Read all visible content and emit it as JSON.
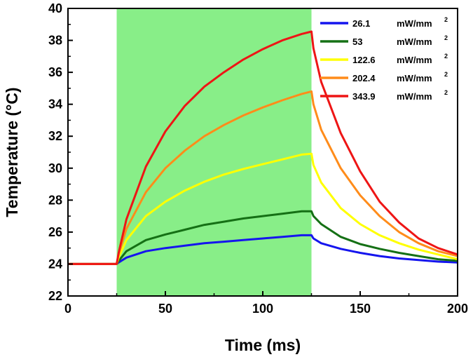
{
  "chart_data": {
    "type": "line",
    "title": "",
    "xlabel": "Time (ms)",
    "ylabel": "Temperature (°C)",
    "xlim": [
      0,
      200
    ],
    "ylim": [
      22,
      40
    ],
    "x_ticks": [
      "0",
      "50",
      "100",
      "150",
      "200"
    ],
    "y_ticks": [
      "22",
      "24",
      "26",
      "28",
      "30",
      "32",
      "34",
      "36",
      "38",
      "40"
    ],
    "grid": false,
    "legend_position": "top-right",
    "shaded_region": {
      "x_start": 25,
      "x_end": 125,
      "color": "#88ee88"
    },
    "legend_unit": "mW/mm",
    "legend_unit_sup": "2",
    "series": [
      {
        "name": "26.1",
        "color": "#1515ee",
        "x": [
          0,
          25,
          26,
          30,
          40,
          50,
          60,
          70,
          80,
          90,
          100,
          110,
          120,
          125,
          126,
          130,
          140,
          150,
          160,
          170,
          180,
          190,
          200
        ],
        "y": [
          24.0,
          24.0,
          24.1,
          24.4,
          24.8,
          25.0,
          25.15,
          25.3,
          25.4,
          25.5,
          25.6,
          25.7,
          25.8,
          25.8,
          25.6,
          25.3,
          24.95,
          24.7,
          24.5,
          24.35,
          24.25,
          24.15,
          24.1
        ]
      },
      {
        "name": "53",
        "color": "#157015",
        "x": [
          0,
          25,
          26,
          30,
          40,
          50,
          60,
          70,
          80,
          90,
          100,
          110,
          120,
          125,
          126,
          130,
          140,
          150,
          160,
          170,
          180,
          190,
          200
        ],
        "y": [
          24.0,
          24.0,
          24.2,
          24.8,
          25.5,
          25.85,
          26.15,
          26.45,
          26.65,
          26.85,
          27.0,
          27.15,
          27.3,
          27.3,
          27.0,
          26.5,
          25.7,
          25.25,
          24.95,
          24.7,
          24.5,
          24.3,
          24.2
        ]
      },
      {
        "name": "122.6",
        "color": "#ffff00",
        "x": [
          0,
          25,
          26,
          30,
          40,
          50,
          60,
          70,
          80,
          90,
          100,
          110,
          120,
          125,
          126,
          130,
          140,
          150,
          160,
          170,
          180,
          190,
          200
        ],
        "y": [
          24.0,
          24.0,
          24.4,
          25.5,
          27.0,
          27.9,
          28.6,
          29.15,
          29.6,
          29.95,
          30.25,
          30.55,
          30.85,
          30.9,
          30.2,
          29.1,
          27.5,
          26.5,
          25.8,
          25.3,
          24.9,
          24.6,
          24.3
        ]
      },
      {
        "name": "202.4",
        "color": "#ff8c1a",
        "x": [
          0,
          25,
          26,
          30,
          40,
          50,
          60,
          70,
          80,
          90,
          100,
          110,
          120,
          125,
          126,
          130,
          140,
          150,
          160,
          170,
          180,
          190,
          200
        ],
        "y": [
          24.0,
          24.0,
          24.6,
          26.2,
          28.5,
          30.0,
          31.1,
          32.0,
          32.7,
          33.3,
          33.8,
          34.25,
          34.65,
          34.8,
          34.0,
          32.4,
          30.0,
          28.3,
          27.0,
          26.0,
          25.3,
          24.8,
          24.5
        ]
      },
      {
        "name": "343.9",
        "color": "#ee1515",
        "x": [
          0,
          25,
          26,
          30,
          40,
          50,
          60,
          70,
          80,
          90,
          100,
          110,
          120,
          125,
          126,
          130,
          140,
          150,
          160,
          170,
          180,
          190,
          200
        ],
        "y": [
          24.0,
          24.0,
          24.7,
          26.8,
          30.1,
          32.3,
          33.9,
          35.1,
          36.0,
          36.8,
          37.45,
          38.0,
          38.4,
          38.55,
          37.5,
          35.4,
          32.2,
          29.8,
          27.9,
          26.6,
          25.6,
          25.0,
          24.6
        ]
      }
    ]
  }
}
